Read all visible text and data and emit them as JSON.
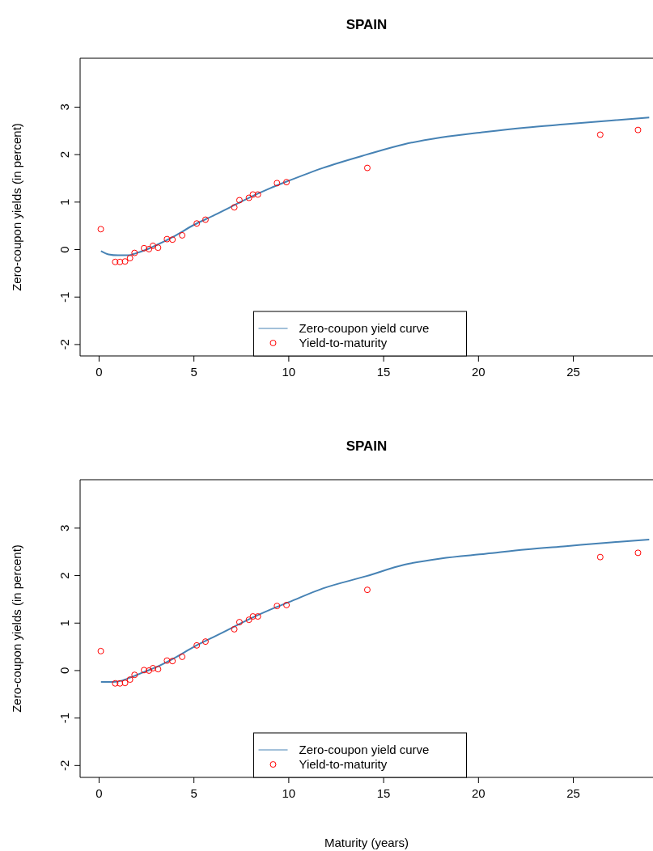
{
  "chart_data": [
    {
      "type": "line",
      "title": "SPAIN",
      "ylabel": "Zero-coupon yields (in percent)",
      "xlim": [
        -1,
        29.2
      ],
      "ylim": [
        -2.24,
        4.03
      ],
      "xticks": [
        0,
        5,
        10,
        15,
        20,
        25
      ],
      "yticks": [
        -2,
        -1,
        0,
        1,
        2,
        3
      ],
      "grid": false,
      "legend": "bottom",
      "series": [
        {
          "name": "Zero-coupon yield curve",
          "color": "#4682b4",
          "marker": "none",
          "x": [
            0.1,
            0.5,
            1,
            1.5,
            2,
            2.5,
            3,
            4,
            5,
            6,
            7,
            8,
            9,
            10,
            11.8,
            14.1,
            16.1,
            18,
            20.4,
            22.5,
            24.6,
            27,
            29
          ],
          "values": [
            -0.03,
            -0.1,
            -0.12,
            -0.12,
            -0.07,
            0,
            0.09,
            0.29,
            0.52,
            0.71,
            0.91,
            1.11,
            1.29,
            1.45,
            1.72,
            2,
            2.22,
            2.36,
            2.48,
            2.57,
            2.64,
            2.72,
            2.78
          ]
        },
        {
          "name": "Yield-to-maturity",
          "type": "scatter",
          "color": "#ff0000",
          "marker": "circle",
          "x": [
            0.09,
            0.85,
            1.1,
            1.37,
            1.63,
            1.87,
            2.37,
            2.63,
            2.84,
            3.11,
            3.58,
            3.87,
            4.38,
            5.15,
            5.61,
            7.13,
            7.4,
            7.9,
            8.11,
            8.37,
            9.38,
            9.88,
            14.14,
            26.42,
            28.41
          ],
          "values": [
            0.43,
            -0.26,
            -0.26,
            -0.25,
            -0.18,
            -0.07,
            0.03,
            0.01,
            0.08,
            0.04,
            0.22,
            0.21,
            0.3,
            0.55,
            0.63,
            0.89,
            1.04,
            1.09,
            1.16,
            1.16,
            1.4,
            1.42,
            1.72,
            2.42,
            2.52
          ]
        }
      ]
    },
    {
      "type": "line",
      "title": "SPAIN",
      "xlabel": "Maturity (years)",
      "ylabel": "Zero-coupon yields (in percent)",
      "xlim": [
        -1,
        29.2
      ],
      "ylim": [
        -2.25,
        4.02
      ],
      "xticks": [
        0,
        5,
        10,
        15,
        20,
        25
      ],
      "yticks": [
        -2,
        -1,
        0,
        1,
        2,
        3
      ],
      "grid": false,
      "legend": "bottom",
      "series": [
        {
          "name": "Zero-coupon yield curve",
          "color": "#4682b4",
          "marker": "none",
          "x": [
            0.1,
            0.5,
            1,
            1.5,
            2,
            2.5,
            3,
            4,
            5,
            6,
            7,
            8,
            9,
            10,
            11.8,
            14.1,
            16.1,
            18,
            20.4,
            22.5,
            24.6,
            27,
            29
          ],
          "values": [
            -0.24,
            -0.24,
            -0.23,
            -0.17,
            -0.09,
            -0.01,
            0.07,
            0.27,
            0.5,
            0.7,
            0.9,
            1.1,
            1.28,
            1.44,
            1.73,
            1.99,
            2.23,
            2.36,
            2.46,
            2.55,
            2.62,
            2.7,
            2.76
          ]
        },
        {
          "name": "Yield-to-maturity",
          "type": "scatter",
          "color": "#ff0000",
          "marker": "circle",
          "x": [
            0.09,
            0.85,
            1.1,
            1.37,
            1.63,
            1.87,
            2.37,
            2.63,
            2.84,
            3.11,
            3.58,
            3.87,
            4.38,
            5.15,
            5.61,
            7.13,
            7.4,
            7.9,
            8.11,
            8.37,
            9.38,
            9.88,
            14.14,
            26.42,
            28.41
          ],
          "values": [
            0.41,
            -0.27,
            -0.27,
            -0.26,
            -0.19,
            -0.09,
            0.01,
            0,
            0.05,
            0.03,
            0.21,
            0.2,
            0.29,
            0.53,
            0.61,
            0.87,
            1.02,
            1.07,
            1.14,
            1.14,
            1.36,
            1.38,
            1.7,
            2.39,
            2.48
          ]
        }
      ]
    }
  ]
}
